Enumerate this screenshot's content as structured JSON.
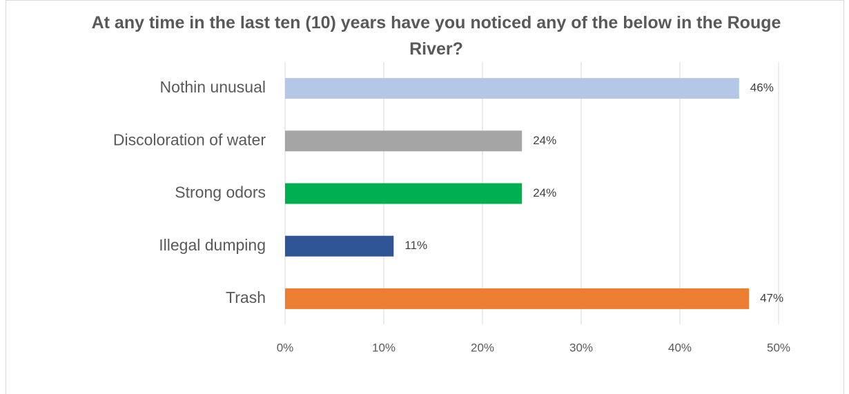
{
  "chart_data": {
    "type": "hbar",
    "title": "At any time in the last ten (10) years have you  noticed any of the below in the Rouge River?",
    "categories": [
      "Nothin unusual",
      "Discoloration of water",
      "Strong odors",
      "Illegal dumping",
      "Trash"
    ],
    "values": [
      46,
      24,
      24,
      11,
      47
    ],
    "value_labels": [
      "46%",
      "24%",
      "24%",
      "11%",
      "47%"
    ],
    "colors": [
      "#b4c7e7",
      "#a5a5a5",
      "#00b050",
      "#2f5597",
      "#ed7d31"
    ],
    "xlim": [
      0,
      50
    ],
    "xticks": [
      {
        "value": 0,
        "label": "0%"
      },
      {
        "value": 10,
        "label": "10%"
      },
      {
        "value": 20,
        "label": "20%"
      },
      {
        "value": 30,
        "label": "30%"
      },
      {
        "value": 40,
        "label": "40%"
      },
      {
        "value": 50,
        "label": "50%"
      }
    ],
    "grid": true
  }
}
